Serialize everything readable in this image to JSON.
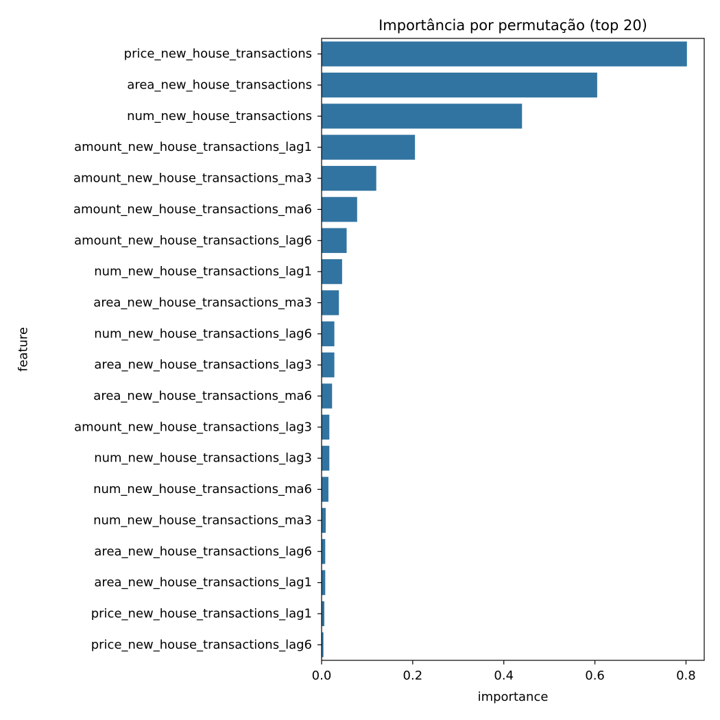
{
  "chart_data": {
    "type": "bar",
    "orientation": "horizontal",
    "title": "Importância por permutação (top 20)",
    "xlabel": "importance",
    "ylabel": "feature",
    "xlim": [
      0,
      0.84
    ],
    "xticks": [
      0.0,
      0.2,
      0.4,
      0.6,
      0.8
    ],
    "xtick_labels": [
      "0.0",
      "0.2",
      "0.4",
      "0.6",
      "0.8"
    ],
    "grid": false,
    "bar_color": "#3274a1",
    "categories": [
      "price_new_house_transactions",
      "area_new_house_transactions",
      "num_new_house_transactions",
      "amount_new_house_transactions_lag1",
      "amount_new_house_transactions_ma3",
      "amount_new_house_transactions_ma6",
      "amount_new_house_transactions_lag6",
      "num_new_house_transactions_lag1",
      "area_new_house_transactions_ma3",
      "num_new_house_transactions_lag6",
      "area_new_house_transactions_lag3",
      "area_new_house_transactions_ma6",
      "amount_new_house_transactions_lag3",
      "num_new_house_transactions_lag3",
      "num_new_house_transactions_ma6",
      "num_new_house_transactions_ma3",
      "area_new_house_transactions_lag6",
      "area_new_house_transactions_lag1",
      "price_new_house_transactions_lag1",
      "price_new_house_transactions_lag6"
    ],
    "values": [
      0.802,
      0.605,
      0.44,
      0.205,
      0.12,
      0.078,
      0.055,
      0.045,
      0.038,
      0.028,
      0.028,
      0.023,
      0.017,
      0.017,
      0.015,
      0.009,
      0.008,
      0.008,
      0.006,
      0.004
    ]
  }
}
